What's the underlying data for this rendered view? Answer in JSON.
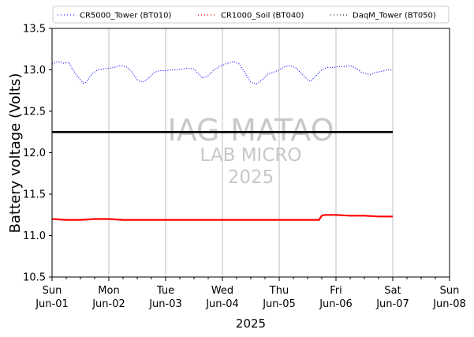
{
  "chart_data": {
    "type": "line",
    "ylabel": "Battery voltage (Volts)",
    "xlabel": "2025",
    "ylim": [
      10.5,
      13.5
    ],
    "yticks": [
      10.5,
      11.0,
      11.5,
      12.0,
      12.5,
      13.0,
      13.5
    ],
    "xlim": [
      0,
      7
    ],
    "xticks": [
      {
        "day": "Sun",
        "date": "Jun-01"
      },
      {
        "day": "Mon",
        "date": "Jun-02"
      },
      {
        "day": "Tue",
        "date": "Jun-03"
      },
      {
        "day": "Wed",
        "date": "Jun-04"
      },
      {
        "day": "Thu",
        "date": "Jun-05"
      },
      {
        "day": "Fri",
        "date": "Jun-06"
      },
      {
        "day": "Sat",
        "date": "Jun-07"
      },
      {
        "day": "Sun",
        "date": "Jun-08"
      }
    ],
    "minor_ticks_per_day": 3,
    "vertical_grid": true,
    "legend_position": "top",
    "reference_line": {
      "y": 12.25,
      "color": "#000000"
    },
    "series": [
      {
        "name": "CR5000_Tower (BT010)",
        "color": "#3333ff",
        "x": [
          0,
          0.1,
          0.2,
          0.3,
          0.35,
          0.45,
          0.55,
          0.6,
          0.7,
          0.8,
          0.9,
          1.0,
          1.1,
          1.2,
          1.3,
          1.4,
          1.5,
          1.6,
          1.7,
          1.8,
          1.9,
          2.0,
          2.1,
          2.2,
          2.3,
          2.4,
          2.5,
          2.55,
          2.65,
          2.75,
          2.85,
          2.95,
          3.05,
          3.15,
          3.2,
          3.3,
          3.4,
          3.5,
          3.6,
          3.7,
          3.8,
          3.9,
          4.0,
          4.1,
          4.2,
          4.3,
          4.4,
          4.5,
          4.55,
          4.65,
          4.75,
          4.85,
          4.95,
          5.05,
          5.15,
          5.25,
          5.35,
          5.45,
          5.5,
          5.6,
          5.7,
          5.8,
          5.9,
          6.0
        ],
        "y": [
          13.07,
          13.1,
          13.08,
          13.09,
          13.02,
          12.92,
          12.84,
          12.85,
          12.95,
          13.0,
          13.01,
          13.02,
          13.03,
          13.05,
          13.04,
          12.98,
          12.88,
          12.85,
          12.9,
          12.97,
          12.99,
          12.99,
          13.0,
          13.0,
          13.01,
          13.02,
          13.01,
          12.97,
          12.9,
          12.93,
          13.0,
          13.04,
          13.07,
          13.09,
          13.1,
          13.07,
          12.96,
          12.85,
          12.83,
          12.88,
          12.95,
          12.97,
          13.0,
          13.04,
          13.05,
          13.02,
          12.95,
          12.88,
          12.86,
          12.93,
          13.0,
          13.03,
          13.03,
          13.04,
          13.04,
          13.05,
          13.02,
          12.97,
          12.96,
          12.94,
          12.97,
          12.98,
          13.0,
          13.0
        ]
      },
      {
        "name": "CR1000_Soil (BT040)",
        "color": "#ff0000",
        "x": [
          0,
          0.25,
          0.5,
          0.75,
          1.0,
          1.25,
          1.5,
          1.75,
          2.0,
          2.25,
          2.5,
          2.75,
          3.0,
          3.25,
          3.5,
          3.75,
          4.0,
          4.25,
          4.5,
          4.6,
          4.7,
          4.75,
          4.8,
          5.0,
          5.25,
          5.5,
          5.75,
          6.0
        ],
        "y": [
          11.2,
          11.19,
          11.19,
          11.2,
          11.2,
          11.19,
          11.19,
          11.19,
          11.19,
          11.19,
          11.19,
          11.19,
          11.19,
          11.19,
          11.19,
          11.19,
          11.19,
          11.19,
          11.19,
          11.19,
          11.19,
          11.24,
          11.25,
          11.25,
          11.24,
          11.24,
          11.23,
          11.23
        ]
      },
      {
        "name": "DaqM_Tower (BT050)",
        "color": "#333333",
        "x": [
          0,
          6.0
        ],
        "y": [
          12.25,
          12.25
        ]
      }
    ]
  },
  "watermark": {
    "line1": "IAG-MATAO",
    "line2": "LAB MICRO",
    "line3": "2025"
  }
}
